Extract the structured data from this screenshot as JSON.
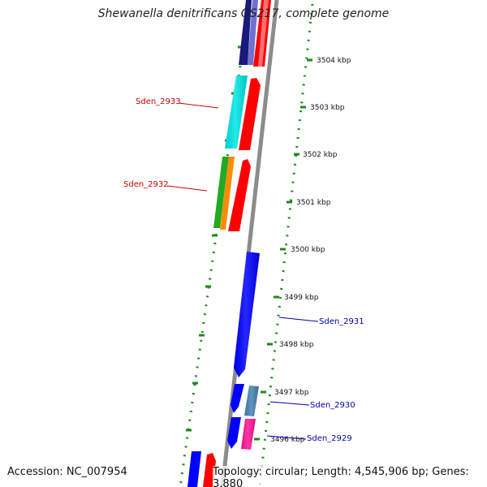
{
  "title": "Shewanella denitrificans OS217, complete genome",
  "footer": {
    "accession": "Accession: NC_007954",
    "summary": "Topology: circular; Length: 4,545,906 bp; Genes: 3,880"
  },
  "colors": {
    "backbone": "#8c8c8c",
    "tick_green": "#1e8a1e",
    "label_red": "#cc0000",
    "label_blue": "#0000aa"
  },
  "kbp_labels": [
    "3504 kbp",
    "3503 kbp",
    "3502 kbp",
    "3501 kbp",
    "3500 kbp",
    "3499 kbp",
    "3498 kbp",
    "3497 kbp",
    "3496 kbp"
  ],
  "gene_labels": {
    "sden_2933": "Sden_2933",
    "sden_2932": "Sden_2932",
    "sden_2931": "Sden_2931",
    "sden_2930": "Sden_2930",
    "sden_2929": "Sden_2929"
  },
  "genes": [
    {
      "color": "#1a1a7a",
      "strand": "minus"
    },
    {
      "color": "#7070d0",
      "strand": "minus"
    },
    {
      "color": "#ff0000",
      "strand": "plus"
    },
    {
      "color": "#ff7070",
      "strand": "plus"
    },
    {
      "color": "#00e6e6",
      "strand": "minus"
    },
    {
      "color": "#ff0000",
      "strand": "plus"
    },
    {
      "color": "#22aa22",
      "strand": "minus"
    },
    {
      "color": "#ff8c00",
      "strand": "minus"
    },
    {
      "color": "#ff0000",
      "strand": "plus"
    },
    {
      "color": "#0000ff",
      "strand": "plus"
    },
    {
      "color": "#0000ff",
      "strand": "minus"
    },
    {
      "color": "#4682b4",
      "strand": "plus"
    },
    {
      "color": "#0000ff",
      "strand": "minus"
    },
    {
      "color": "#ff1493",
      "strand": "plus"
    },
    {
      "color": "#0000ff",
      "strand": "minus"
    },
    {
      "color": "#ff0000",
      "strand": "plus"
    }
  ]
}
